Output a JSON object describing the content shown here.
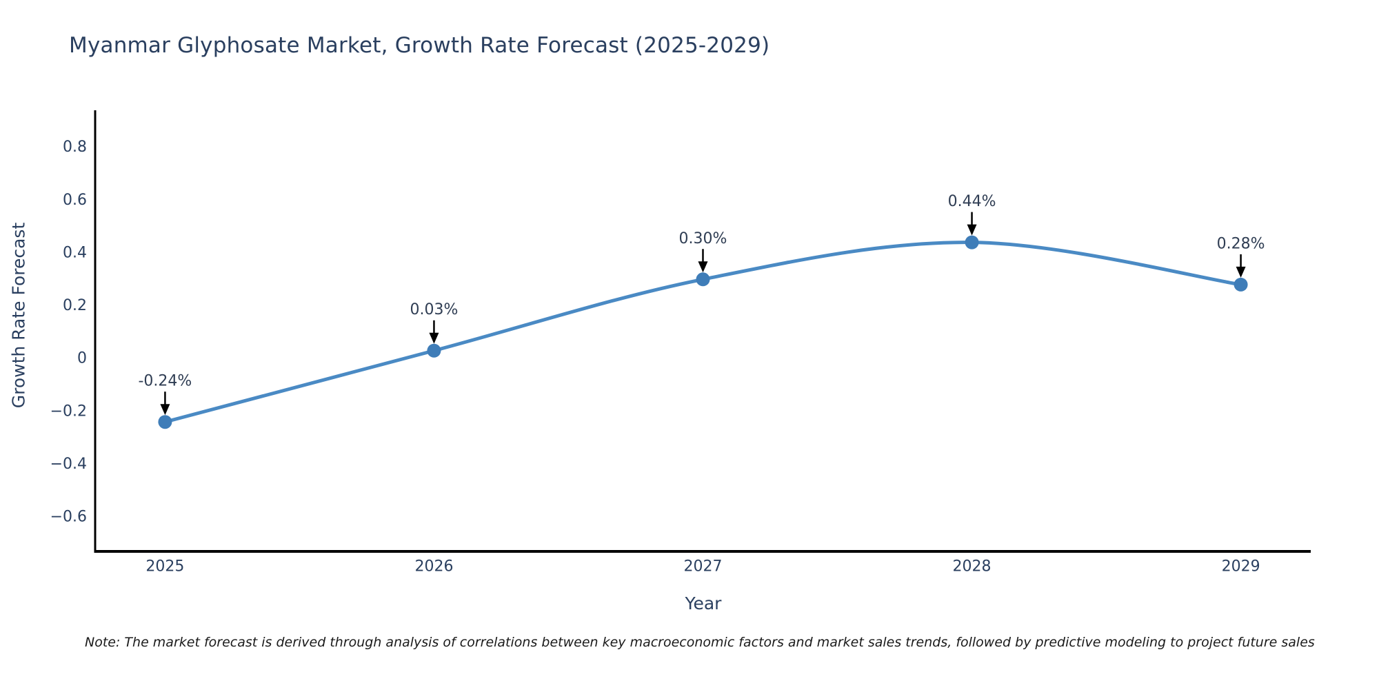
{
  "title": "Myanmar Glyphosate Market, Growth Rate Forecast (2025-2029)",
  "note": "Note: The market forecast is derived through analysis of correlations between key macroeconomic factors and market sales trends, followed by predictive modeling to project future sales",
  "chart_data": {
    "type": "line",
    "title": "Myanmar Glyphosate Market, Growth Rate Forecast (2025-2029)",
    "xlabel": "Year",
    "ylabel": "Growth Rate Forecast",
    "x": [
      2025,
      2026,
      2027,
      2028,
      2029
    ],
    "series": [
      {
        "name": "Growth Rate Forecast",
        "values": [
          -0.24,
          0.03,
          0.3,
          0.44,
          0.28
        ]
      }
    ],
    "point_labels": [
      "-0.24%",
      "0.03%",
      "0.30%",
      "0.44%",
      "0.28%"
    ],
    "xticks": [
      "2025",
      "2026",
      "2027",
      "2028",
      "2029"
    ],
    "yticks": [
      0.8,
      0.6,
      0.4,
      0.2,
      0,
      -0.2,
      -0.4,
      -0.6
    ],
    "ytick_labels": [
      "0.8",
      "0.6",
      "0.4",
      "0.2",
      "0",
      "−0.2",
      "−0.4",
      "−0.6"
    ],
    "xlim": [
      2024.74,
      2029.26
    ],
    "ylim": [
      -0.73,
      0.94
    ],
    "grid": false,
    "legend": "none",
    "line_shape": "spline",
    "colors": {
      "line": "#4a8ac4",
      "marker": "#3f7db8",
      "axis_line": "#000000",
      "tick_text": "#2a3f5f",
      "annotation_text": "#2f3d53",
      "annotation_arrow": "#000000",
      "background": "#ffffff"
    }
  }
}
